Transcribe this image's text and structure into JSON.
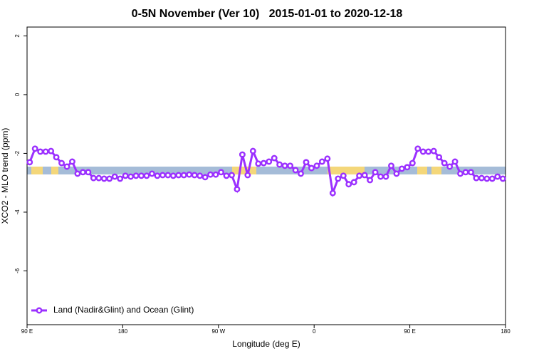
{
  "chart_data": {
    "type": "line",
    "title": "0-5N November (Ver 10)   2015-01-01 to 2020-12-18",
    "x_label": "Longitude (deg E)",
    "y_label": "XCO2 - MLO trend (ppm)",
    "xlim": [
      90,
      540
    ],
    "xticks": [
      {
        "value": 90,
        "label": "90 E"
      },
      {
        "value": 180,
        "label": "180"
      },
      {
        "value": 270,
        "label": "90 W"
      },
      {
        "value": 360,
        "label": "0"
      },
      {
        "value": 450,
        "label": "90 E"
      },
      {
        "value": 540,
        "label": "180"
      }
    ],
    "ylim": [
      -7.83,
      2.3
    ],
    "yticks": [
      2,
      0,
      -2,
      -4,
      -6
    ],
    "legend": "bottom-left",
    "series": [
      {
        "name": "Land (Nadir&Glint) and Ocean (Glint)",
        "color": "#9b30ff",
        "x": [
          92.5,
          97.5,
          102.5,
          107.5,
          112.5,
          117.5,
          122.5,
          127.5,
          132.5,
          137.5,
          142.5,
          147.5,
          152.5,
          157.5,
          162.5,
          167.5,
          172.5,
          177.5,
          182.5,
          187.5,
          192.5,
          197.5,
          202.5,
          207.5,
          212.5,
          217.5,
          222.5,
          227.5,
          232.5,
          237.5,
          242.5,
          247.5,
          252.5,
          257.5,
          262.5,
          267.5,
          272.5,
          277.5,
          282.5,
          287.5,
          292.5,
          297.5,
          302.5,
          307.5,
          312.5,
          317.5,
          322.5,
          327.5,
          332.5,
          337.5,
          342.5,
          347.5,
          352.5,
          357.5,
          362.5,
          367.5,
          372.5,
          377.5,
          382.5,
          387.5,
          392.5,
          397.5,
          402.5,
          407.5,
          412.5,
          417.5,
          422.5,
          427.5,
          432.5,
          437.5,
          442.5,
          447.5,
          452.5,
          457.5,
          462.5,
          467.5,
          472.5,
          477.5,
          482.5,
          487.5,
          492.5,
          497.5,
          502.5,
          507.5,
          512.5,
          517.5,
          522.5,
          527.5,
          532.5,
          537.5
        ],
        "values": [
          -2.3,
          -1.84,
          -1.94,
          -1.94,
          -1.92,
          -2.13,
          -2.33,
          -2.45,
          -2.28,
          -2.69,
          -2.64,
          -2.64,
          -2.84,
          -2.84,
          -2.86,
          -2.86,
          -2.79,
          -2.86,
          -2.76,
          -2.79,
          -2.76,
          -2.76,
          -2.76,
          -2.69,
          -2.76,
          -2.74,
          -2.74,
          -2.76,
          -2.74,
          -2.74,
          -2.72,
          -2.74,
          -2.76,
          -2.81,
          -2.72,
          -2.72,
          -2.64,
          -2.76,
          -2.74,
          -3.22,
          -2.04,
          -2.74,
          -1.92,
          -2.35,
          -2.33,
          -2.28,
          -2.16,
          -2.38,
          -2.42,
          -2.42,
          -2.57,
          -2.69,
          -2.3,
          -2.5,
          -2.42,
          -2.28,
          -2.18,
          -3.35,
          -2.86,
          -2.76,
          -3.05,
          -2.98,
          -2.76,
          -2.74,
          -2.91,
          -2.64,
          -2.79,
          -2.79,
          -2.42,
          -2.69,
          -2.52,
          -2.47,
          -2.33,
          -1.84,
          -1.94,
          -1.94,
          -1.92,
          -2.13,
          -2.33,
          -2.45,
          -2.28,
          -2.69,
          -2.64,
          -2.64,
          -2.84,
          -2.84,
          -2.86,
          -2.86,
          -2.79,
          -2.86
        ]
      }
    ]
  }
}
